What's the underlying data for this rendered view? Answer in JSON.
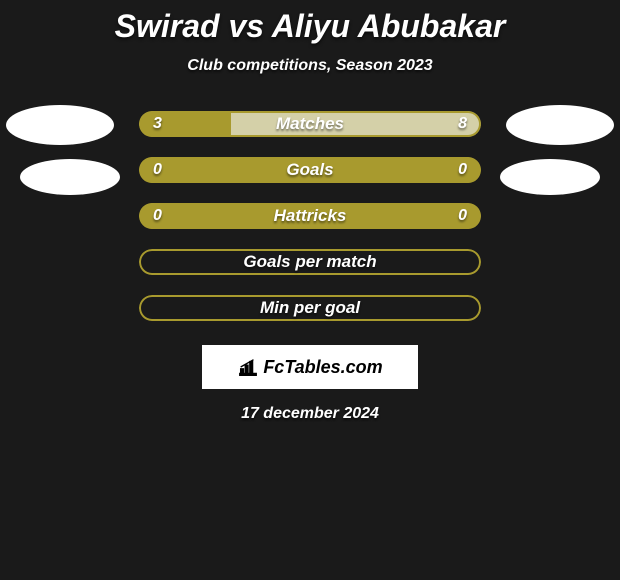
{
  "title": "Swirad vs Aliyu Abubakar",
  "subtitle": "Club competitions, Season 2023",
  "date": "17 december 2024",
  "logo_text": "FcTables.com",
  "colors": {
    "background": "#1a1a1a",
    "bar_olive": "#a89a2e",
    "bar_olive_light": "#b8aa3e",
    "bar_pale": "#d4d0a8",
    "border_olive": "#a89a2e",
    "text": "#ffffff"
  },
  "rows": [
    {
      "label": "Matches",
      "left_val": "3",
      "right_val": "8",
      "left_width_pct": 27,
      "right_width_pct": 73,
      "left_color": "#a89a2e",
      "right_color": "#d4d0a8",
      "border_color": "#a89a2e",
      "show_values": true
    },
    {
      "label": "Goals",
      "left_val": "0",
      "right_val": "0",
      "left_width_pct": 50,
      "right_width_pct": 50,
      "left_color": "#a89a2e",
      "right_color": "#a89a2e",
      "border_color": "#a89a2e",
      "show_values": true
    },
    {
      "label": "Hattricks",
      "left_val": "0",
      "right_val": "0",
      "left_width_pct": 50,
      "right_width_pct": 50,
      "left_color": "#a89a2e",
      "right_color": "#a89a2e",
      "border_color": "#a89a2e",
      "show_values": true
    },
    {
      "label": "Goals per match",
      "left_val": "",
      "right_val": "",
      "left_width_pct": 0,
      "right_width_pct": 0,
      "left_color": "#1a1a1a",
      "right_color": "#1a1a1a",
      "border_color": "#a89a2e",
      "show_values": false
    },
    {
      "label": "Min per goal",
      "left_val": "",
      "right_val": "",
      "left_width_pct": 0,
      "right_width_pct": 0,
      "left_color": "#1a1a1a",
      "right_color": "#1a1a1a",
      "border_color": "#a89a2e",
      "show_values": false
    }
  ]
}
